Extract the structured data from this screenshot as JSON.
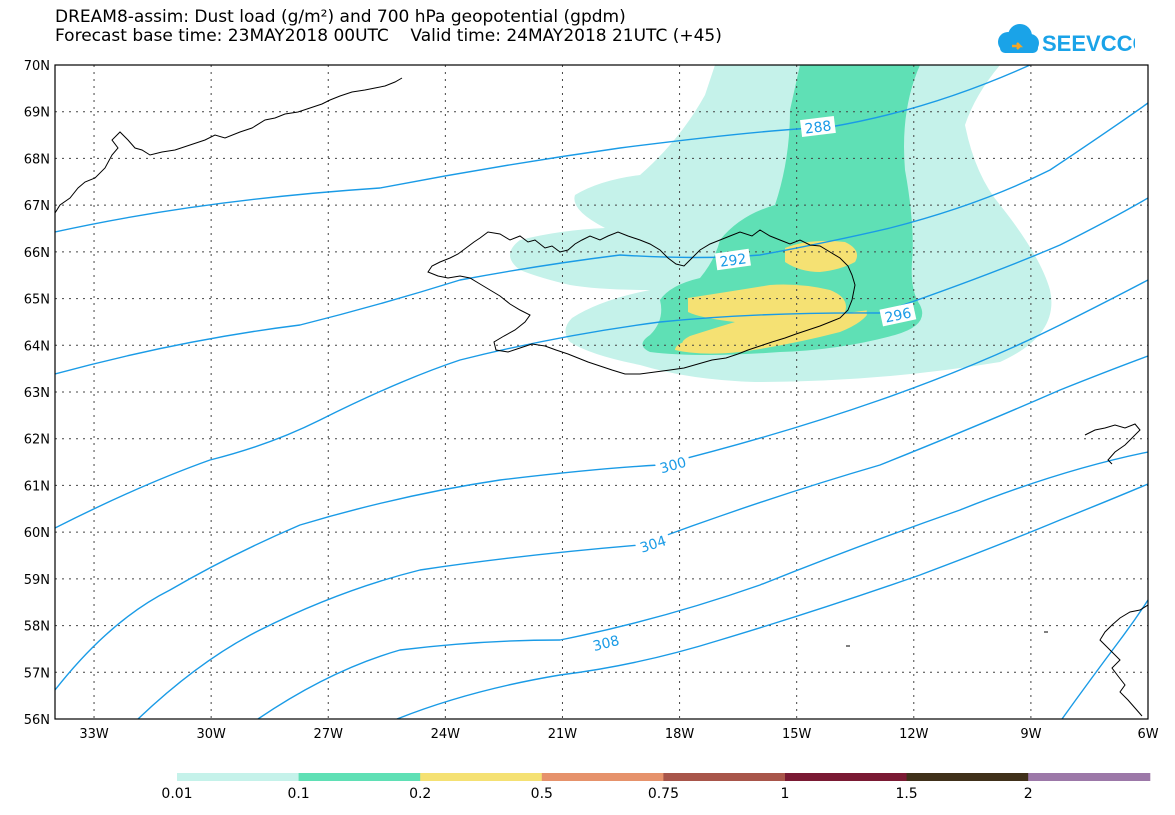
{
  "header": {
    "title_line1": "DREAM8-assim: Dust load (g/m²) and 700 hPa geopotential (gpdm)",
    "title_line2": "Forecast base time: 23MAY2018 00UTC    Valid time: 24MAY2018 21UTC (+45)",
    "logo_text": "SEEVCCC",
    "logo_color": "#1aa3e8"
  },
  "axes": {
    "lat_labels": [
      "70N",
      "69N",
      "68N",
      "67N",
      "66N",
      "65N",
      "64N",
      "63N",
      "62N",
      "61N",
      "60N",
      "59N",
      "58N",
      "57N",
      "56N"
    ],
    "lon_labels": [
      "33W",
      "30W",
      "27W",
      "24W",
      "21W",
      "18W",
      "15W",
      "12W",
      "9W",
      "6W"
    ]
  },
  "contour_labels": [
    "288",
    "292",
    "296",
    "300",
    "304",
    "308"
  ],
  "colorbar": {
    "labels": [
      "0.01",
      "0.1",
      "0.2",
      "0.5",
      "0.75",
      "1",
      "1.5",
      "2"
    ],
    "colors": [
      "#c5f2ea",
      "#5fe0b5",
      "#f5e173",
      "#e6926b",
      "#a8554a",
      "#7a1a33",
      "#40301a",
      "#9c78a8"
    ]
  },
  "colors": {
    "contour": "#1a9be6",
    "dust_light": "#c5f2ea",
    "dust_mid": "#5fe0b5",
    "dust_high": "#f5e173"
  }
}
